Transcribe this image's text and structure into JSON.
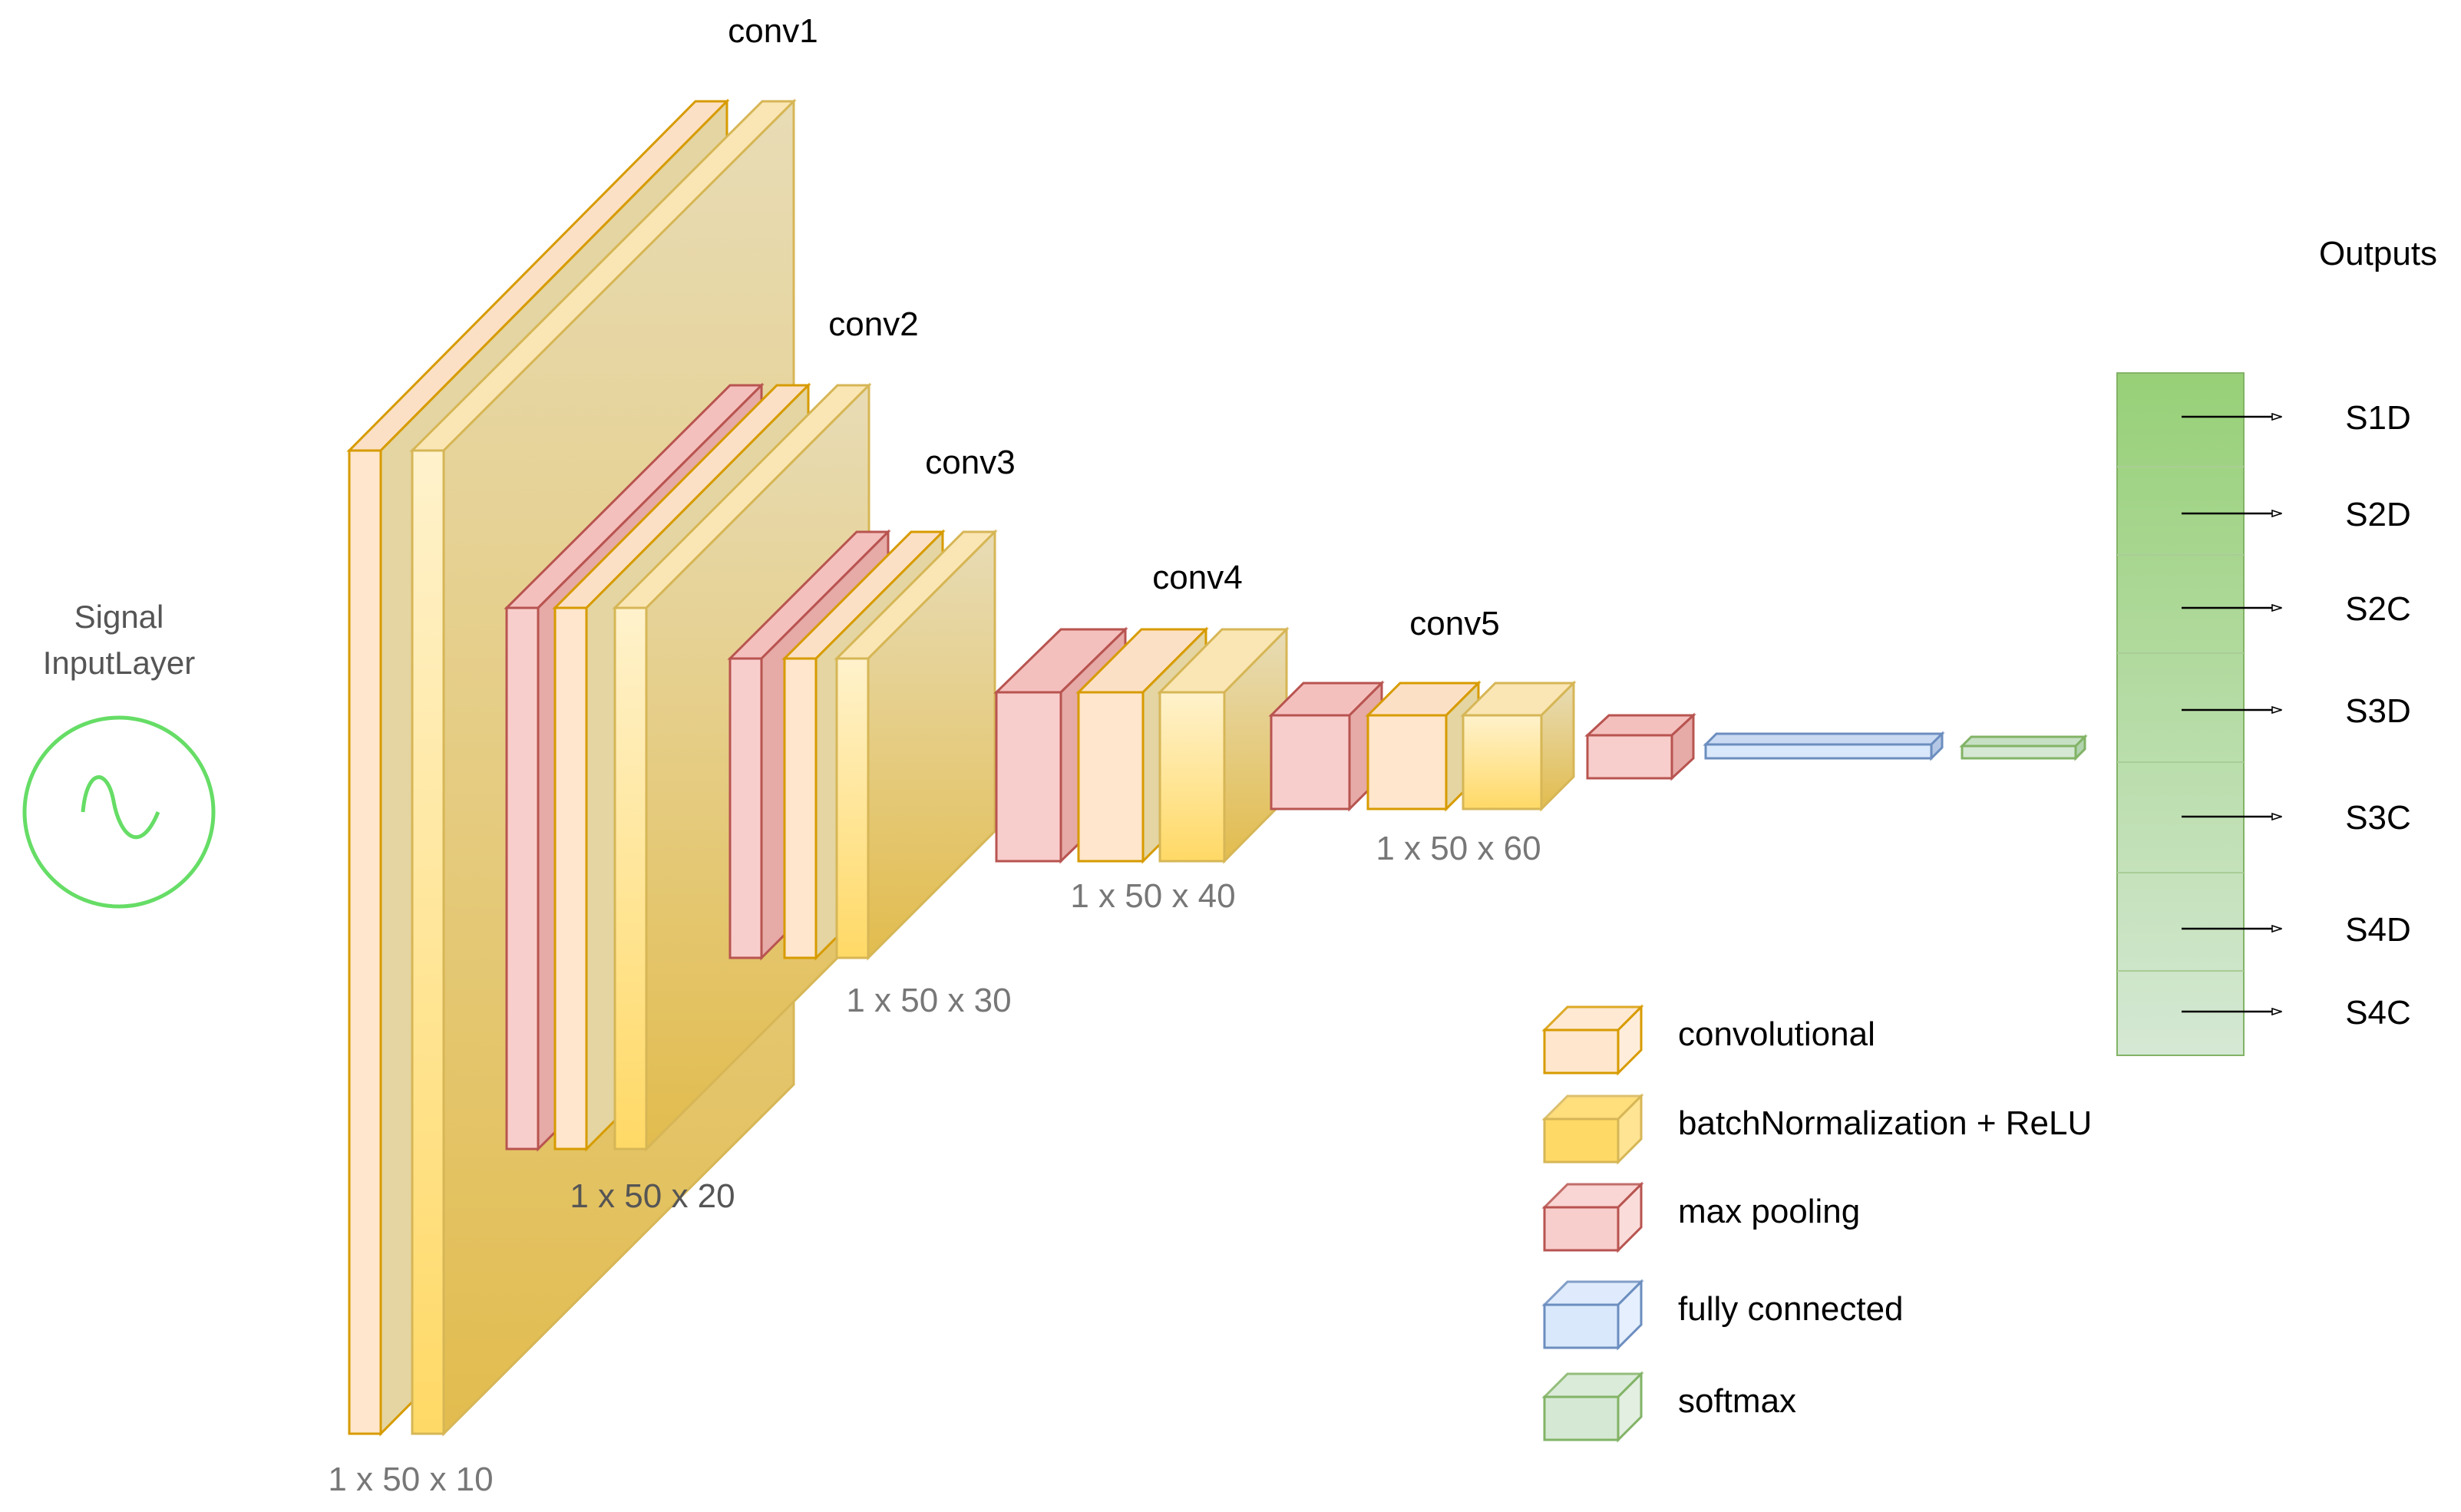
{
  "input": {
    "line1": "Signal",
    "line2": "InputLayer",
    "icon": "sine-wave-icon",
    "color": "#66dd66"
  },
  "blocks": [
    {
      "title": "conv1",
      "size": "1 x 50 x 10"
    },
    {
      "title": "conv2",
      "size": "1 x 50 x 20"
    },
    {
      "title": "conv3",
      "size": "1 x 50 x 30"
    },
    {
      "title": "conv4",
      "size": "1 x 50 x 40"
    },
    {
      "title": "conv5",
      "size": "1 x 50 x 60"
    }
  ],
  "outputs": {
    "title": "Outputs",
    "classes": [
      "S1D",
      "S2D",
      "S2C",
      "S3D",
      "S3C",
      "S4D",
      "S4C"
    ]
  },
  "legend": [
    {
      "label": "convolutional",
      "type": "conv"
    },
    {
      "label": "batchNormalization + ReLU",
      "type": "bn"
    },
    {
      "label": "max pooling",
      "type": "pool"
    },
    {
      "label": "fully connected",
      "type": "fc"
    },
    {
      "label": "softmax",
      "type": "softmax"
    }
  ],
  "colors": {
    "conv_fill": "#ffe6cc",
    "conv_stroke": "#d79b00",
    "bn_fill": "#ffd966",
    "bn_stroke": "#d6b656",
    "pool_fill": "#f8cecc",
    "pool_stroke": "#b85450",
    "fc_fill": "#dae8fc",
    "fc_stroke": "#6c8ebf",
    "softmax_fill": "#d5e8d4",
    "softmax_stroke": "#82b366",
    "output_top": "#97d077",
    "output_bottom": "#d5e8d4",
    "text": "#000000",
    "size_text": "#777777"
  }
}
